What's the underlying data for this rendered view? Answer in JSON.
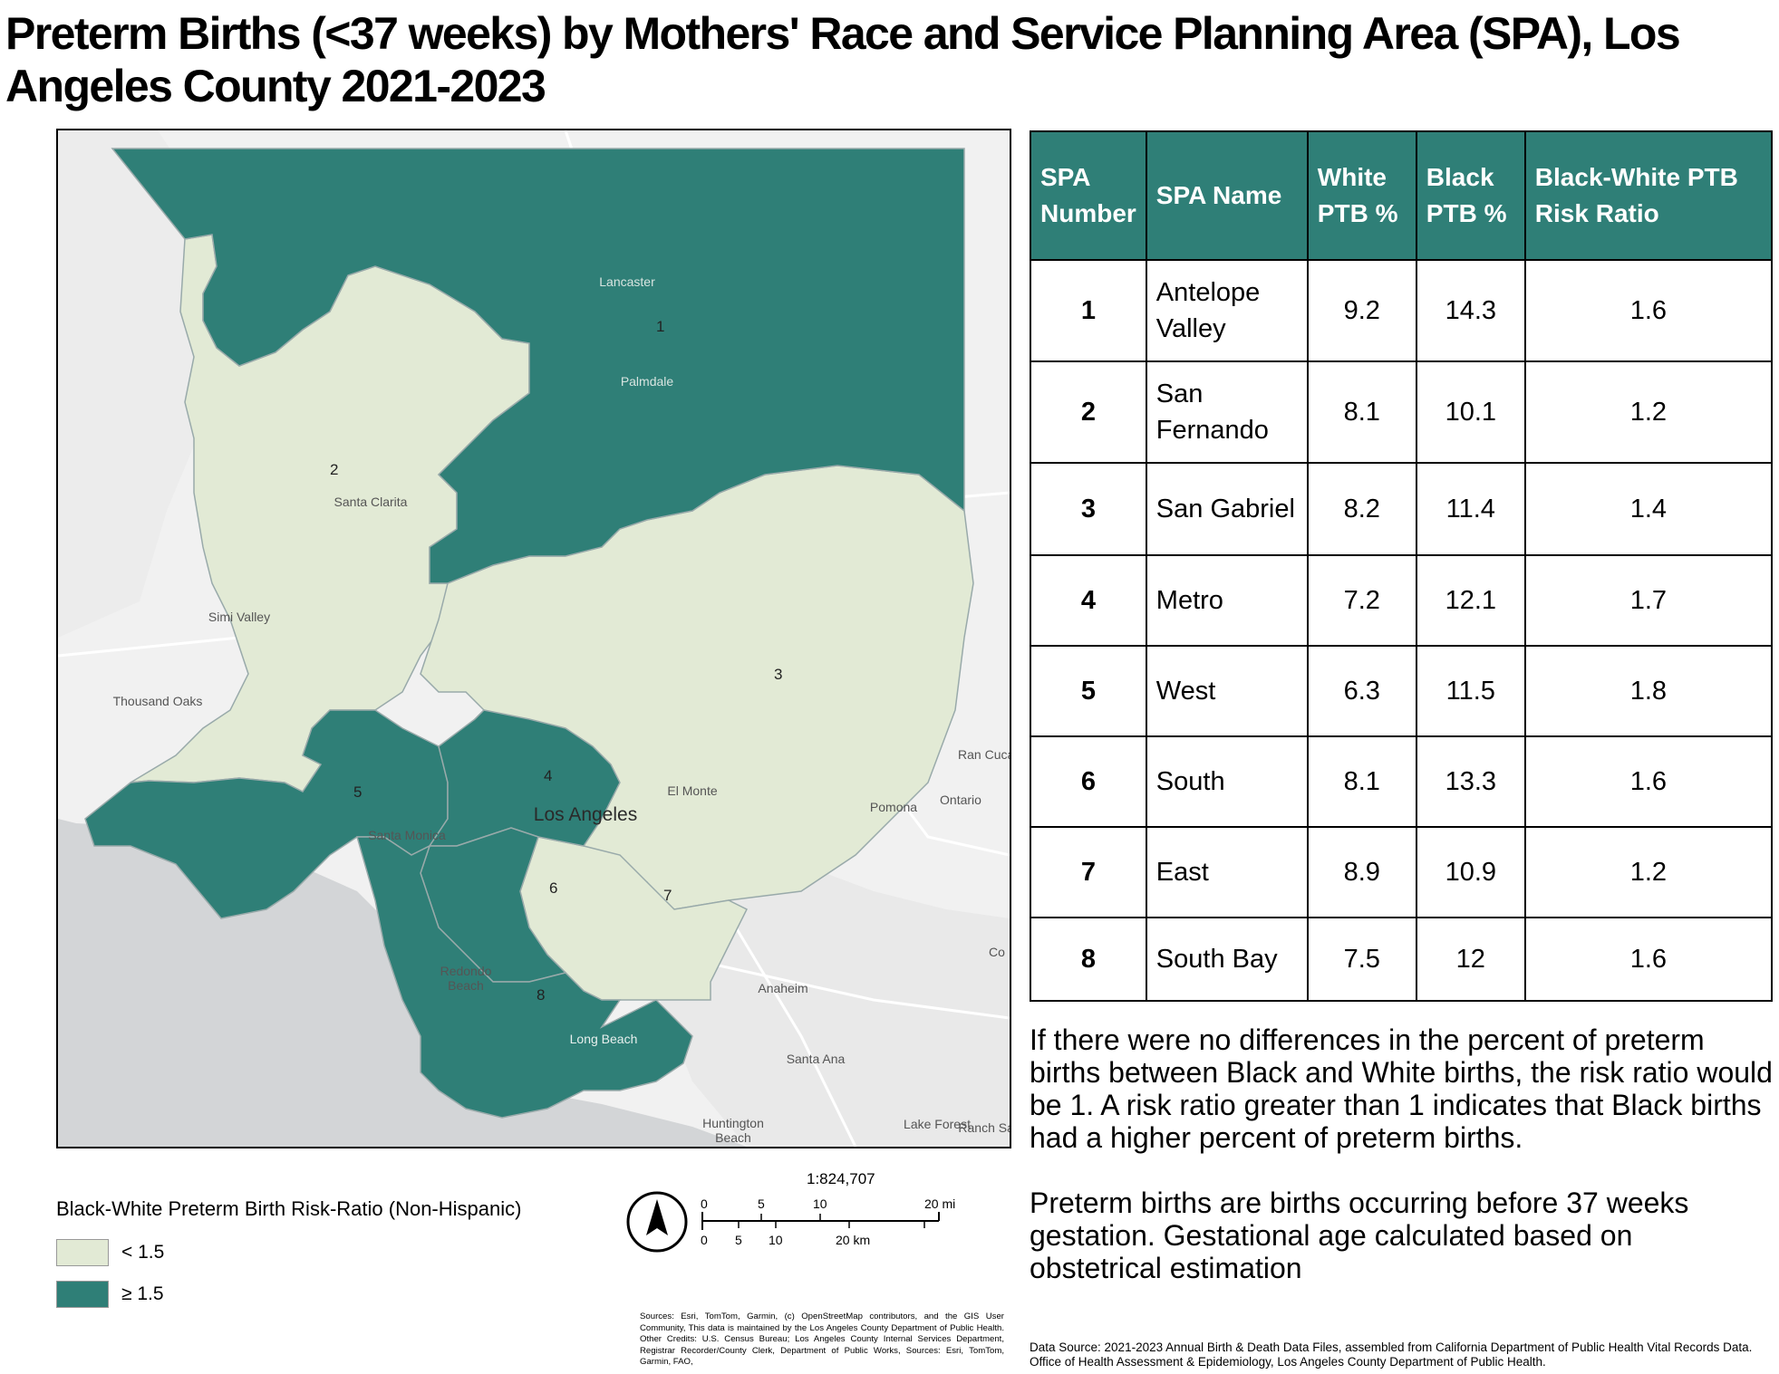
{
  "title": "Preterm Births (<37 weeks) by Mothers' Race and Service Planning Area (SPA),  Los Angeles County 2021-2023",
  "colors": {
    "below_threshold": "#e2ead5",
    "above_threshold": "#2f7f77",
    "header_bg": "#2f7f77",
    "water": "#d3d5d7",
    "basemap_land": "#f1f1f1"
  },
  "map": {
    "spa_labels": [
      "1",
      "2",
      "3",
      "4",
      "5",
      "6",
      "7",
      "8"
    ],
    "place_labels": {
      "lancaster": "Lancaster",
      "palmdale": "Palmdale",
      "santa_clarita": "Santa Clarita",
      "simi_valley": "Simi Valley",
      "thousand_oaks": "Thousand Oaks",
      "los_angeles": "Los Angeles",
      "el_monte": "El Monte",
      "pomona": "Pomona",
      "ontario": "Ontario",
      "santa_monica": "Santa Monica",
      "redondo_beach": "Redondo Beach",
      "long_beach": "Long Beach",
      "anaheim": "Anaheim",
      "santa_ana": "Santa Ana",
      "huntington_beach": "Huntington Beach",
      "lake_forest": "Lake Forest",
      "ran_cucam": "Ran Cucam",
      "co": "Co",
      "ranch_sant": "Ranch Sant"
    },
    "spa_class": {
      "1": "above",
      "2": "below",
      "3": "below",
      "4": "above",
      "5": "above",
      "6": "above",
      "7": "below",
      "8": "above"
    }
  },
  "legend": {
    "title": "Black-White Preterm Birth Risk-Ratio (Non-Hispanic)",
    "items": [
      {
        "label": "< 1.5",
        "color": "#e2ead5"
      },
      {
        "label": "≥  1.5",
        "color": "#2f7f77"
      }
    ]
  },
  "scale": {
    "ratio": "1:824,707",
    "mi_ticks": [
      "0",
      "5",
      "10",
      "20 mi"
    ],
    "km_ticks": [
      "0",
      "5",
      "10",
      "20 km"
    ]
  },
  "sources": "Sources:  Esri, TomTom, Garmin, (c) OpenStreetMap contributors, and the GIS User Community, This data is maintained by the Los Angeles County Department of Public Health.  Other Credits:  U.S. Census Bureau; Los Angeles County Internal Services Department, Registrar Recorder/County Clerk, Department of Public Works, Sources:  Esri, TomTom, Garmin, FAO,",
  "table": {
    "headers": [
      "SPA Number",
      "SPA Name",
      "White PTB %",
      "Black PTB %",
      "Black-White PTB Risk Ratio"
    ],
    "rows": [
      [
        "1",
        "Antelope Valley",
        "9.2",
        "14.3",
        "1.6"
      ],
      [
        "2",
        "San Fernando",
        "8.1",
        "10.1",
        "1.2"
      ],
      [
        "3",
        "San Gabriel",
        "8.2",
        "11.4",
        "1.4"
      ],
      [
        "4",
        "Metro",
        "7.2",
        "12.1",
        "1.7"
      ],
      [
        "5",
        "West",
        "6.3",
        "11.5",
        "1.8"
      ],
      [
        "6",
        "South",
        "8.1",
        "13.3",
        "1.6"
      ],
      [
        "7",
        "East",
        "8.9",
        "10.9",
        "1.2"
      ],
      [
        "8",
        "South Bay",
        "7.5",
        "12",
        "1.6"
      ]
    ]
  },
  "notes": [
    "If there were no differences in the percent of preterm births between Black and White births, the risk ratio would be 1. A risk ratio greater than 1 indicates that Black births had a higher percent of preterm births.",
    "Preterm births are births occurring before 37 weeks gestation. Gestational age calculated based on obstetrical estimation"
  ],
  "data_source": "Data Source: 2021-2023 Annual Birth & Death Data Files, assembled from California Department of Public Health Vital Records Data. Office of Health Assessment & Epidemiology, Los Angeles County Department of Public Health."
}
